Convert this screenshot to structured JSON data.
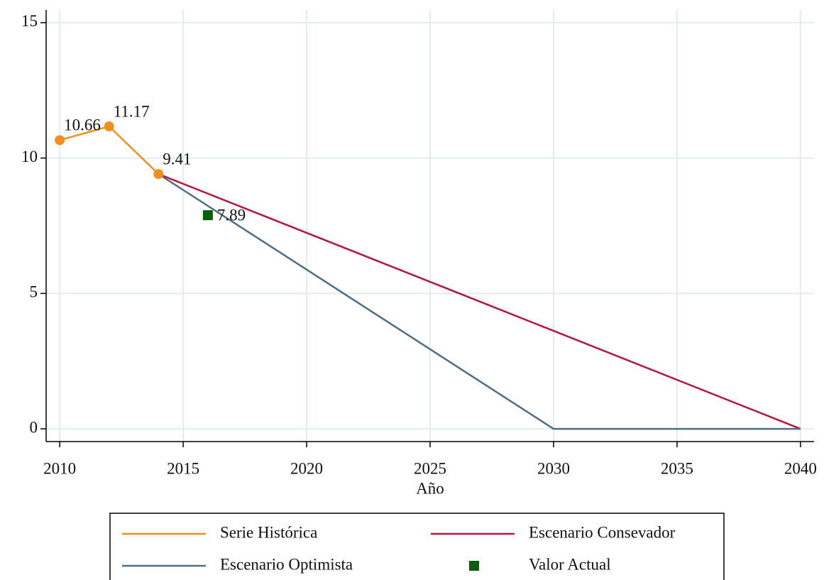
{
  "chart_data": {
    "type": "line",
    "x_label": "Año",
    "xlim": [
      2009.45,
      2040.55
    ],
    "xticks": [
      2010,
      2015,
      2020,
      2025,
      2030,
      2035,
      2040
    ],
    "ylim": [
      -0.47,
      15.47
    ],
    "yticks": [
      0,
      5,
      10,
      15
    ],
    "grid": true,
    "legend": "bottom",
    "series": [
      {
        "name": "Serie Histórica",
        "color": "#f28e1c",
        "style": "line+markers",
        "labels": "top-right",
        "x": [
          2010,
          2012,
          2014
        ],
        "values": [
          10.66,
          11.17,
          9.41
        ]
      },
      {
        "name": "Escenario Consevador",
        "color": "#b5163d",
        "style": "line",
        "x": [
          2014,
          2040
        ],
        "values": [
          9.41,
          0
        ]
      },
      {
        "name": "Escenario Optimista",
        "color": "#4e6e85",
        "style": "line",
        "x": [
          2014,
          2030,
          2040
        ],
        "values": [
          9.41,
          0,
          0
        ]
      },
      {
        "name": "Valor Actual",
        "color": "#0b5e0b",
        "style": "square",
        "labels": "right",
        "x": [
          2016
        ],
        "values": [
          7.89
        ]
      }
    ]
  }
}
